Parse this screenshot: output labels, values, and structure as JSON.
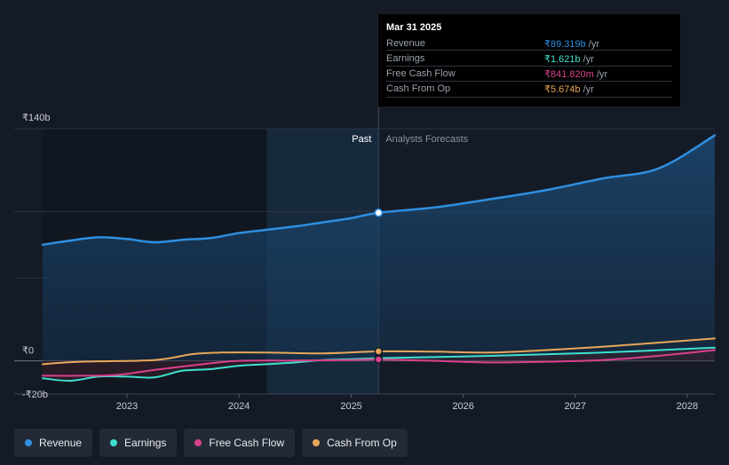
{
  "tooltip": {
    "date": "Mar 31 2025",
    "rows": [
      {
        "label": "Revenue",
        "value": "₹89.319b",
        "unit": "/yr",
        "color": "#2f8fe0"
      },
      {
        "label": "Earnings",
        "value": "₹1.621b",
        "unit": "/yr",
        "color": "#3ee0cf"
      },
      {
        "label": "Free Cash Flow",
        "value": "₹841.820m",
        "unit": "/yr",
        "color": "#d9418c"
      },
      {
        "label": "Cash From Op",
        "value": "₹5.674b",
        "unit": "/yr",
        "color": "#e8a85a"
      }
    ]
  },
  "legend": [
    {
      "label": "Revenue",
      "color": "#2f8fe0"
    },
    {
      "label": "Earnings",
      "color": "#3ee0cf"
    },
    {
      "label": "Free Cash Flow",
      "color": "#d9418c"
    },
    {
      "label": "Cash From Op",
      "color": "#e8a85a"
    }
  ],
  "chart_data": {
    "type": "line",
    "title": "",
    "xlabel": "",
    "ylabel": "",
    "y_unit": "₹ billions",
    "ylim": [
      -20,
      140
    ],
    "xlim": [
      "2022-04-01",
      "2028-03-31"
    ],
    "y_tick_labels": [
      {
        "value": 140,
        "label": "₹140b"
      },
      {
        "value": 0,
        "label": "₹0"
      },
      {
        "value": -20,
        "label": "-₹20b"
      }
    ],
    "x_ticks": [
      "2023",
      "2024",
      "2025",
      "2026",
      "2027",
      "2028"
    ],
    "past_label": "Past",
    "forecast_label": "Analysts Forecasts",
    "highlight_start": "2024-04-01",
    "divider_date": "2025-03-31",
    "grid": true,
    "series": [
      {
        "name": "Revenue",
        "color": "#2f8fe0",
        "points": [
          [
            "2022-04-01",
            70
          ],
          [
            "2022-06-30",
            72.5
          ],
          [
            "2022-09-30",
            74.5
          ],
          [
            "2022-12-31",
            73.5
          ],
          [
            "2023-03-31",
            71.5
          ],
          [
            "2023-06-30",
            73
          ],
          [
            "2023-09-30",
            74
          ],
          [
            "2023-12-31",
            77
          ],
          [
            "2024-03-31",
            79
          ],
          [
            "2024-06-30",
            81
          ],
          [
            "2024-09-30",
            83.5
          ],
          [
            "2024-12-31",
            86
          ],
          [
            "2025-03-31",
            89.3
          ],
          [
            "2025-09-30",
            92.5
          ],
          [
            "2026-03-31",
            97.5
          ],
          [
            "2026-09-30",
            103
          ],
          [
            "2027-03-31",
            110
          ],
          [
            "2027-09-30",
            116
          ],
          [
            "2028-03-31",
            122
          ],
          [
            "2028-03-31",
            136
          ]
        ]
      },
      {
        "name": "Earnings",
        "color": "#3ee0cf",
        "points": [
          [
            "2022-04-01",
            -10.5
          ],
          [
            "2022-06-30",
            -12
          ],
          [
            "2022-09-30",
            -9.5
          ],
          [
            "2022-12-31",
            -9.5
          ],
          [
            "2023-03-31",
            -10
          ],
          [
            "2023-06-30",
            -6
          ],
          [
            "2023-09-30",
            -5
          ],
          [
            "2023-12-31",
            -3
          ],
          [
            "2024-03-31",
            -2
          ],
          [
            "2024-06-30",
            -1
          ],
          [
            "2024-09-30",
            0.5
          ],
          [
            "2024-12-31",
            1
          ],
          [
            "2025-03-31",
            1.6
          ],
          [
            "2026-03-31",
            3
          ],
          [
            "2027-03-31",
            5
          ],
          [
            "2028-03-31",
            8
          ]
        ]
      },
      {
        "name": "Free Cash Flow",
        "color": "#d9418c",
        "points": [
          [
            "2022-04-01",
            -9
          ],
          [
            "2022-07-31",
            -9
          ],
          [
            "2022-11-30",
            -8.5
          ],
          [
            "2023-03-31",
            -5.5
          ],
          [
            "2023-09-30",
            -1.5
          ],
          [
            "2023-12-31",
            0
          ],
          [
            "2024-06-30",
            0.2
          ],
          [
            "2024-12-31",
            0.5
          ],
          [
            "2025-03-31",
            0.84
          ],
          [
            "2025-09-30",
            0
          ],
          [
            "2026-03-31",
            -1
          ],
          [
            "2026-09-30",
            -0.5
          ],
          [
            "2027-03-31",
            0.5
          ],
          [
            "2027-09-30",
            3
          ],
          [
            "2028-03-31",
            6.5
          ]
        ]
      },
      {
        "name": "Cash From Op",
        "color": "#e8a85a",
        "points": [
          [
            "2022-04-01",
            -2
          ],
          [
            "2022-07-31",
            -0.5
          ],
          [
            "2023-03-31",
            0.5
          ],
          [
            "2023-07-31",
            4
          ],
          [
            "2023-10-31",
            5
          ],
          [
            "2024-03-31",
            5
          ],
          [
            "2024-09-30",
            4.5
          ],
          [
            "2025-03-31",
            5.7
          ],
          [
            "2025-09-30",
            5.5
          ],
          [
            "2026-03-31",
            5
          ],
          [
            "2026-09-30",
            6.5
          ],
          [
            "2027-03-31",
            8.5
          ],
          [
            "2027-09-30",
            11
          ],
          [
            "2028-03-31",
            13.5
          ]
        ]
      }
    ]
  }
}
